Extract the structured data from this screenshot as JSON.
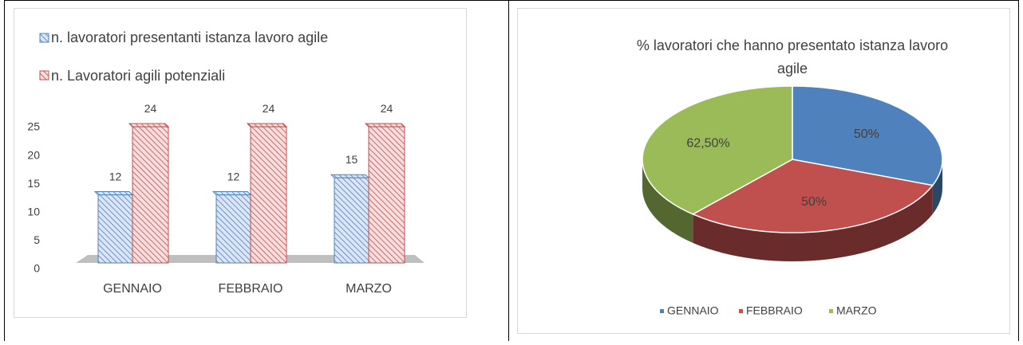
{
  "chart_data": [
    {
      "type": "bar",
      "categories": [
        "GENNAIO",
        "FEBBRAIO",
        "MARZO"
      ],
      "series": [
        {
          "name": "n. lavoratori presentanti  istanza lavoro agile",
          "color": "#4f81bd",
          "values": [
            12,
            12,
            15
          ]
        },
        {
          "name": "n. Lavoratori  agili potenziali",
          "color": "#c0504d",
          "values": [
            24,
            24,
            24
          ]
        }
      ],
      "ylim": [
        0,
        25
      ],
      "yticks": [
        0,
        5,
        10,
        15,
        20,
        25
      ],
      "grid": false,
      "legend": "top-left"
    },
    {
      "type": "pie",
      "title": "% lavoratori che hanno presentato istanza  lavoro agile",
      "categories": [
        "GENNAIO",
        "FEBBRAIO",
        "MARZO"
      ],
      "values": [
        50,
        50,
        62.5
      ],
      "value_labels": [
        "50%",
        "50%",
        "62,50%"
      ],
      "colors": [
        "#4f81bd",
        "#c0504d",
        "#9bbb59"
      ],
      "legend": "bottom"
    }
  ]
}
